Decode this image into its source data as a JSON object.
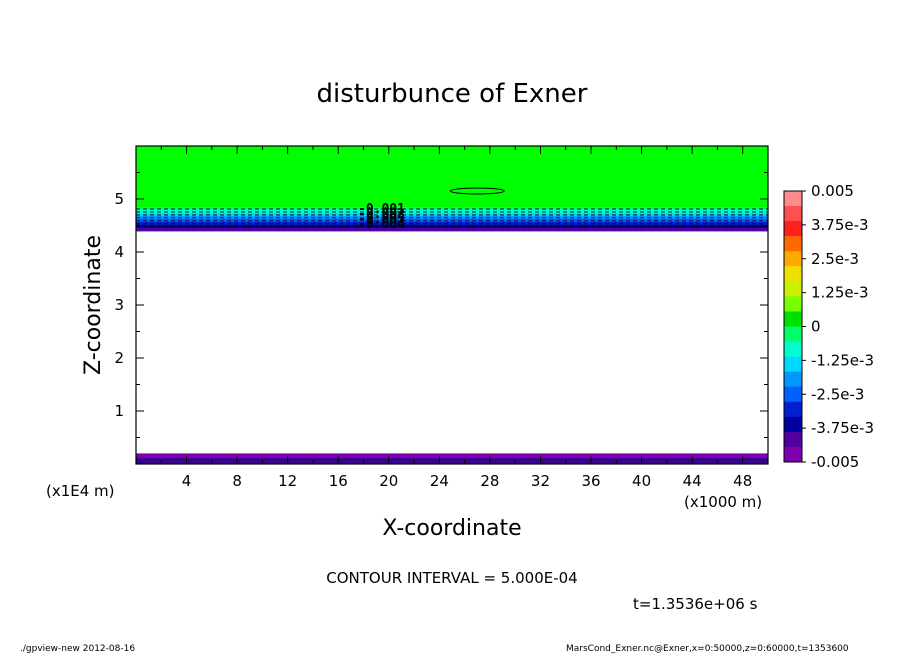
{
  "chart_data": {
    "type": "heatmap",
    "title": "disturbunce of Exner",
    "xlabel": "X-coordinate",
    "ylabel": "Z-coordinate",
    "x_unit": "(x1000 m)",
    "y_unit": "(x1E4 m)",
    "xlim": [
      0,
      50
    ],
    "ylim": [
      0,
      6
    ],
    "xticks": [
      "4",
      "8",
      "12",
      "16",
      "20",
      "24",
      "28",
      "32",
      "36",
      "40",
      "44",
      "48"
    ],
    "yticks": [
      "1",
      "2",
      "3",
      "4",
      "5"
    ],
    "xtick_values": [
      4,
      8,
      12,
      16,
      20,
      24,
      28,
      32,
      36,
      40,
      44,
      48
    ],
    "ytick_values": [
      1,
      2,
      3,
      4,
      5
    ],
    "contour_interval": "CONTOUR INTERVAL = 5.000E-04",
    "contour_labels": [
      "-0.001",
      "-0.002",
      "-0.003",
      "-0.004"
    ],
    "colorbar": {
      "labels": [
        "0.005",
        "3.75e-3",
        "2.5e-3",
        "1.25e-3",
        "0",
        "-1.25e-3",
        "-2.5e-3",
        "-3.75e-3",
        "-0.005"
      ],
      "range": [
        -0.005,
        0.005
      ],
      "colors": [
        "#ff8c8c",
        "#ff5050",
        "#ff2020",
        "#ff6a00",
        "#ffaa00",
        "#f0e000",
        "#c8f000",
        "#7aff00",
        "#00e000",
        "#00ff66",
        "#00ffcc",
        "#00d8ff",
        "#0098ff",
        "#0060ff",
        "#0020d0",
        "#0000a0",
        "#5000a0",
        "#8000b0"
      ]
    },
    "fields": {
      "upper_band_value_range": [
        -0.005,
        0.0
      ],
      "upper_band_z_range": [
        4.4,
        6.0
      ],
      "lower_band_value": -0.005,
      "lower_band_z_range": [
        0.0,
        0.2
      ],
      "closed_contour_center_x": 27,
      "closed_contour_z": 5.15
    },
    "grid": false,
    "legend": "right"
  },
  "time_label": "t=1.3536e+06 s",
  "footer_left": "./gpview-new   2012-08-16",
  "footer_right": "MarsCond_Exner.nc@Exner,x=0:50000,z=0:60000,t=1353600"
}
